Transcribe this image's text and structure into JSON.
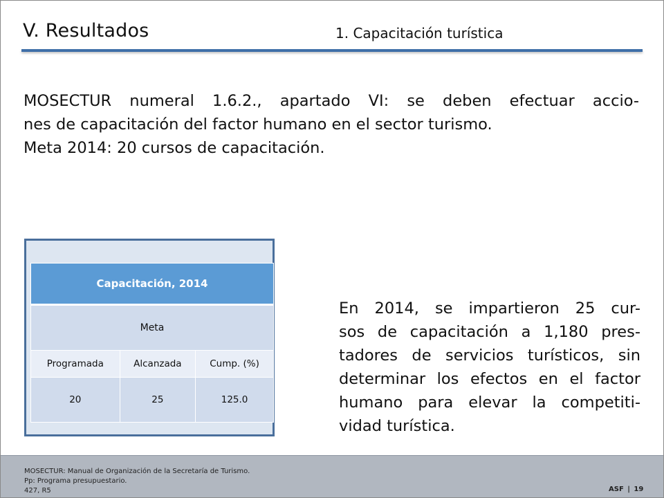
{
  "header": {
    "title": "V. Resultados",
    "subtitle": "1. Capacitación turística"
  },
  "intro": {
    "lines": [
      "MOSECTUR numeral 1.6.2., apartado VI: se deben efectuar accio-",
      "nes de capacitación del factor humano en el sector turismo.",
      "Meta 2014: 20 cursos de capacitación."
    ]
  },
  "table": {
    "title": "Capacitación, 2014",
    "group_label": "Meta",
    "columns": [
      "Programada",
      "Alcanzada",
      "Cump. (%)"
    ],
    "values": [
      "20",
      "25",
      "125.0"
    ]
  },
  "summary": {
    "lines": [
      "En 2014, se impartieron 25 cur-",
      "sos de capacitación a  1,180 pres-",
      "tadores de servicios turísticos, sin",
      "determinar los efectos en el factor",
      "humano para elevar la competiti-",
      "vidad turística."
    ]
  },
  "footer": {
    "notes": [
      "MOSECTUR: Manual de Organización de la Secretaría de Turismo.",
      "Pp: Programa presupuestario.",
      "427, R5"
    ],
    "org": "ASF",
    "separator": "|",
    "page": "19"
  },
  "colors": {
    "accent_rule": "#3f6fa8",
    "table_header": "#5b9bd5",
    "table_border": "#4a6f9c",
    "footer_bg": "#b1b7c0"
  }
}
